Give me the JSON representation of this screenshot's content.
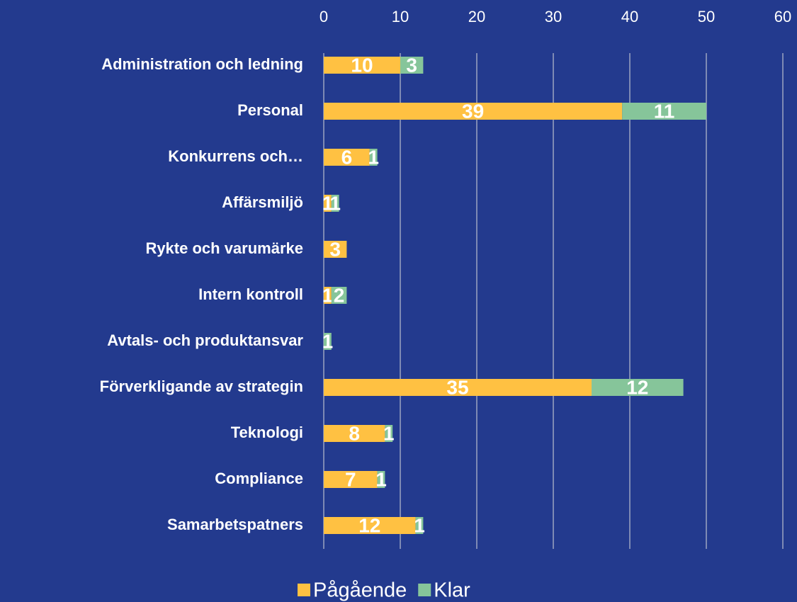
{
  "chart_data": {
    "type": "stacked_barh",
    "categories": [
      "Administration och ledning",
      "Personal",
      "Konkurrens och…",
      "Affärsmiljö",
      "Rykte och varumärke",
      "Intern kontroll",
      "Avtals- och produktansvar",
      "Förverkligande av strategin",
      "Teknologi",
      "Compliance",
      "Samarbetspatners"
    ],
    "series": [
      {
        "name": "Pågående",
        "color": "#ffc142",
        "values": [
          10,
          39,
          6,
          1,
          3,
          1,
          null,
          35,
          8,
          7,
          12
        ]
      },
      {
        "name": "Klar",
        "color": "#86c59a",
        "values": [
          3,
          11,
          1,
          1,
          null,
          2,
          1,
          12,
          1,
          1,
          1
        ]
      }
    ],
    "xlim": [
      0,
      60
    ],
    "xticks": [
      0,
      10,
      20,
      30,
      40,
      50,
      60
    ],
    "grid": true,
    "legend": "bottom"
  }
}
